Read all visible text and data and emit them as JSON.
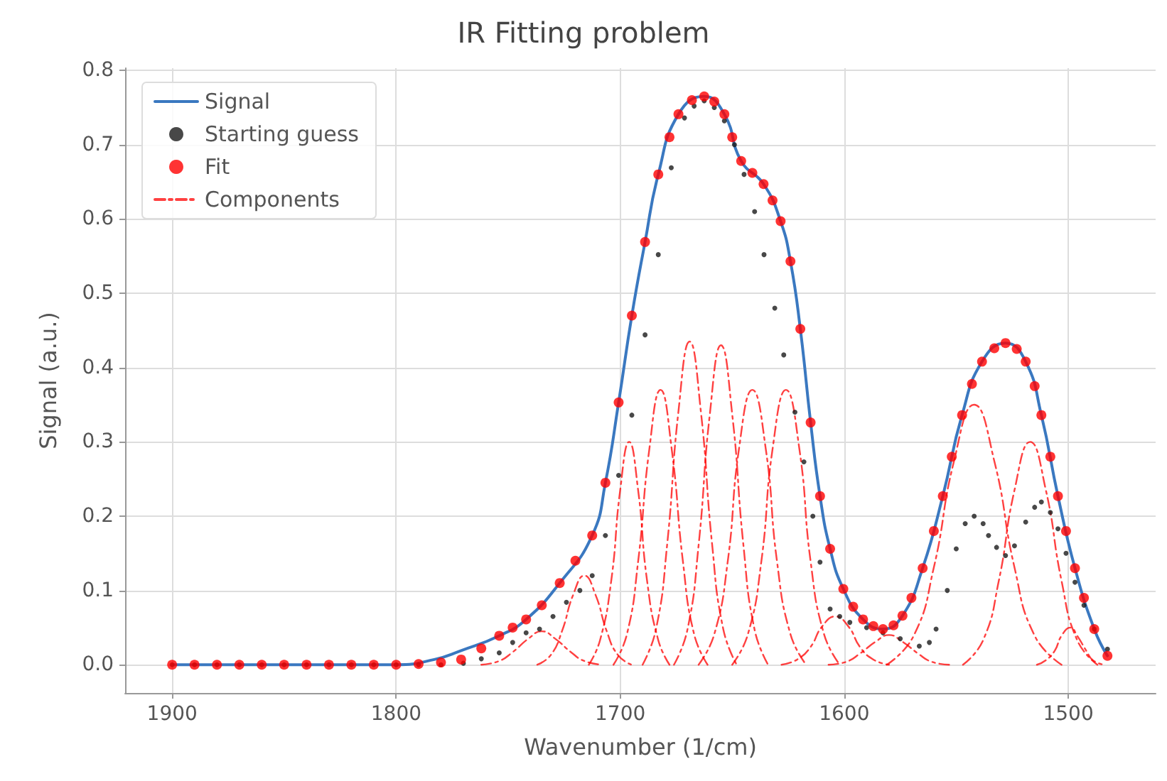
{
  "chart_data": {
    "type": "line",
    "title": "IR Fitting problem",
    "xlabel": "Wavenumber (1/cm)",
    "ylabel": "Signal (a.u.)",
    "xlim": [
      1921,
      1461
    ],
    "xticks": [
      1900,
      1800,
      1700,
      1600,
      1500
    ],
    "ylim": [
      -0.038,
      0.803
    ],
    "yticks": [
      {
        "value": 0,
        "label": "0.0"
      },
      0.1,
      0.2,
      0.3,
      0.4,
      0.5,
      0.6,
      0.7,
      0.8
    ],
    "grid": true,
    "legend": "top left",
    "series": [
      {
        "name": "Signal",
        "color": "#3a78c0",
        "marker": "none",
        "line_style": "solid",
        "x": [
          1900,
          1800,
          1783,
          1771,
          1754,
          1742,
          1727,
          1712.5,
          1706.6,
          1700.7,
          1694.8,
          1688.9,
          1683,
          1674,
          1662.5,
          1653.5,
          1646,
          1636,
          1628.4,
          1624,
          1619.6,
          1615,
          1610.8,
          1606.3,
          1600.4,
          1591.6,
          1582.7,
          1574,
          1565,
          1556,
          1547.4,
          1538.5,
          1528,
          1519,
          1512,
          1504.6,
          1497,
          1488.4,
          1482.5
        ],
        "values": [
          0,
          0,
          0.007,
          0.019,
          0.039,
          0.061,
          0.11,
          0.174,
          0.245,
          0.353,
          0.47,
          0.569,
          0.66,
          0.741,
          0.765,
          0.741,
          0.678,
          0.647,
          0.597,
          0.543,
          0.452,
          0.326,
          0.227,
          0.156,
          0.102,
          0.061,
          0.048,
          0.066,
          0.13,
          0.227,
          0.336,
          0.408,
          0.433,
          0.408,
          0.336,
          0.227,
          0.13,
          0.048,
          0.012
        ]
      },
      {
        "name": "Starting guess",
        "type": "scatter",
        "color": "#1a1a1a",
        "marker": "circle",
        "x": [
          1900,
          1890,
          1880,
          1870,
          1860,
          1850,
          1840,
          1830,
          1820,
          1810,
          1800,
          1790,
          1780,
          1770,
          1762,
          1754,
          1748,
          1742,
          1736,
          1730,
          1724,
          1718,
          1712.5,
          1706.6,
          1700.7,
          1694.8,
          1688.9,
          1683,
          1677.2,
          1671.3,
          1667,
          1662.5,
          1658,
          1653.5,
          1649,
          1644.7,
          1640,
          1635.8,
          1631,
          1627,
          1622,
          1618,
          1614,
          1610.8,
          1606.3,
          1602,
          1597.5,
          1590,
          1582.7,
          1575,
          1566.5,
          1562,
          1559,
          1554,
          1550,
          1546,
          1542,
          1538,
          1535.6,
          1532,
          1528,
          1524,
          1519,
          1515,
          1512,
          1508,
          1504.6,
          1501,
          1497,
          1493,
          1488.4,
          1482.5
        ],
        "values": [
          0,
          0,
          0,
          0,
          0,
          0,
          0,
          0,
          0,
          0,
          0,
          0,
          0,
          0.002,
          0.008,
          0.016,
          0.03,
          0.043,
          0.048,
          0.065,
          0.084,
          0.1,
          0.12,
          0.174,
          0.255,
          0.336,
          0.444,
          0.552,
          0.669,
          0.736,
          0.752,
          0.759,
          0.75,
          0.732,
          0.7,
          0.66,
          0.61,
          0.552,
          0.48,
          0.417,
          0.34,
          0.273,
          0.2,
          0.138,
          0.075,
          0.065,
          0.057,
          0.05,
          0.043,
          0.035,
          0.025,
          0.03,
          0.048,
          0.1,
          0.156,
          0.19,
          0.2,
          0.19,
          0.174,
          0.158,
          0.147,
          0.16,
          0.192,
          0.212,
          0.219,
          0.205,
          0.183,
          0.15,
          0.111,
          0.08,
          0.048,
          0.021
        ]
      },
      {
        "name": "Fit",
        "type": "scatter",
        "color": "#ff0000",
        "marker": "circle",
        "x": [
          1900,
          1890,
          1880,
          1870,
          1860,
          1850,
          1840,
          1830,
          1820,
          1810,
          1800,
          1790,
          1780,
          1771,
          1762,
          1754,
          1748,
          1742,
          1735,
          1727,
          1720,
          1712.5,
          1706.6,
          1700.7,
          1694.8,
          1688.9,
          1683,
          1678,
          1674,
          1668,
          1662.5,
          1658,
          1653.5,
          1650,
          1646,
          1641,
          1636,
          1632,
          1628.4,
          1624,
          1619.6,
          1615,
          1610.8,
          1606.3,
          1600.4,
          1596,
          1591.6,
          1587,
          1582.7,
          1578,
          1574,
          1570,
          1565,
          1560,
          1556,
          1552,
          1547.4,
          1543,
          1538.5,
          1533,
          1528,
          1523,
          1519,
          1515,
          1512,
          1508,
          1504.6,
          1501,
          1497,
          1493,
          1488.4,
          1482.5
        ],
        "values": [
          0,
          0,
          0,
          0,
          0,
          0,
          0,
          0,
          0,
          0,
          0,
          0.001,
          0.003,
          0.007,
          0.022,
          0.039,
          0.05,
          0.061,
          0.08,
          0.11,
          0.14,
          0.174,
          0.245,
          0.353,
          0.47,
          0.569,
          0.66,
          0.71,
          0.741,
          0.76,
          0.765,
          0.758,
          0.741,
          0.71,
          0.678,
          0.662,
          0.647,
          0.625,
          0.597,
          0.543,
          0.452,
          0.326,
          0.227,
          0.156,
          0.102,
          0.078,
          0.061,
          0.052,
          0.048,
          0.053,
          0.066,
          0.09,
          0.13,
          0.18,
          0.227,
          0.28,
          0.336,
          0.378,
          0.408,
          0.426,
          0.433,
          0.425,
          0.408,
          0.375,
          0.336,
          0.28,
          0.227,
          0.18,
          0.13,
          0.09,
          0.048,
          0.012
        ]
      },
      {
        "name": "Components",
        "type": "line",
        "color": "#ff0000",
        "marker": "none",
        "line_style": "dashed",
        "x": [
          1762,
          1754,
          1748,
          1741,
          1735,
          1729,
          1722,
          1716,
          1708
        ],
        "values": [
          0,
          0.005,
          0.017,
          0.035,
          0.045,
          0.035,
          0.017,
          0.005,
          0
        ]
      },
      {
        "type": "line",
        "color": "#ff0000",
        "marker": "none",
        "line_style": "dashed",
        "x": [
          1737,
          1731,
          1726,
          1721,
          1716,
          1711,
          1706,
          1701,
          1695
        ],
        "values": [
          0,
          0.013,
          0.045,
          0.094,
          0.12,
          0.094,
          0.045,
          0.013,
          0
        ]
      },
      {
        "type": "line",
        "color": "#ff0000",
        "marker": "none",
        "line_style": "dashed",
        "x": [
          1714,
          1709,
          1704,
          1700,
          1696,
          1692,
          1688,
          1683,
          1678
        ],
        "values": [
          0,
          0.033,
          0.113,
          0.235,
          0.3,
          0.235,
          0.113,
          0.033,
          0
        ]
      },
      {
        "type": "line",
        "color": "#ff0000",
        "marker": "none",
        "line_style": "dashed",
        "x": [
          1703,
          1697,
          1692,
          1687,
          1682,
          1677,
          1672,
          1667,
          1661
        ],
        "values": [
          0,
          0.041,
          0.139,
          0.29,
          0.37,
          0.29,
          0.139,
          0.041,
          0
        ]
      },
      {
        "type": "line",
        "color": "#ff0000",
        "marker": "none",
        "line_style": "dashed",
        "x": [
          1690,
          1684,
          1679,
          1674,
          1669,
          1664,
          1659,
          1654,
          1648
        ],
        "values": [
          0,
          0.048,
          0.163,
          0.341,
          0.435,
          0.341,
          0.163,
          0.048,
          0
        ]
      },
      {
        "type": "line",
        "color": "#ff0000",
        "marker": "none",
        "line_style": "dashed",
        "x": [
          1676,
          1670,
          1665,
          1660,
          1655,
          1650,
          1645,
          1640,
          1634
        ],
        "values": [
          0,
          0.047,
          0.161,
          0.337,
          0.43,
          0.337,
          0.161,
          0.047,
          0
        ]
      },
      {
        "type": "line",
        "color": "#ff0000",
        "marker": "none",
        "line_style": "dashed",
        "x": [
          1665,
          1658,
          1652,
          1647,
          1641,
          1635,
          1630,
          1624,
          1617
        ],
        "values": [
          0,
          0.041,
          0.139,
          0.29,
          0.37,
          0.29,
          0.139,
          0.041,
          0
        ]
      },
      {
        "type": "line",
        "color": "#ff0000",
        "marker": "none",
        "line_style": "dashed",
        "x": [
          1650,
          1643,
          1637,
          1632,
          1626,
          1620,
          1615,
          1609,
          1602
        ],
        "values": [
          0,
          0.041,
          0.139,
          0.29,
          0.37,
          0.29,
          0.139,
          0.041,
          0
        ]
      },
      {
        "type": "line",
        "color": "#ff0000",
        "marker": "none",
        "line_style": "dashed",
        "x": [
          1628,
          1621,
          1615,
          1610,
          1604,
          1598,
          1593,
          1587,
          1580
        ],
        "values": [
          0,
          0.007,
          0.024,
          0.051,
          0.065,
          0.051,
          0.024,
          0.007,
          0
        ]
      },
      {
        "type": "line",
        "color": "#ff0000",
        "marker": "none",
        "line_style": "dashed",
        "x": [
          1607,
          1599,
          1593,
          1586,
          1580,
          1574,
          1567,
          1561,
          1553
        ],
        "values": [
          0,
          0.004,
          0.015,
          0.031,
          0.04,
          0.031,
          0.015,
          0.004,
          0
        ]
      },
      {
        "type": "line",
        "color": "#ff0000",
        "marker": "none",
        "line_style": "dashed",
        "x": [
          1581,
          1569,
          1560,
          1551,
          1542,
          1533,
          1524,
          1515,
          1503
        ],
        "values": [
          0,
          0.039,
          0.131,
          0.274,
          0.35,
          0.274,
          0.131,
          0.039,
          0
        ]
      },
      {
        "type": "line",
        "color": "#ff0000",
        "marker": "none",
        "line_style": "dashed",
        "x": [
          1547,
          1538,
          1531,
          1524,
          1517,
          1510,
          1503,
          1496,
          1487
        ],
        "values": [
          0,
          0.033,
          0.113,
          0.235,
          0.3,
          0.235,
          0.113,
          0.033,
          0
        ]
      },
      {
        "type": "line",
        "color": "#ff0000",
        "marker": "none",
        "line_style": "dashed",
        "x": [
          1514,
          1510,
          1506,
          1503,
          1499,
          1496,
          1492,
          1489,
          1484
        ],
        "values": [
          0,
          0.006,
          0.019,
          0.039,
          0.05,
          0.039,
          0.019,
          0.006,
          0
        ]
      }
    ]
  }
}
